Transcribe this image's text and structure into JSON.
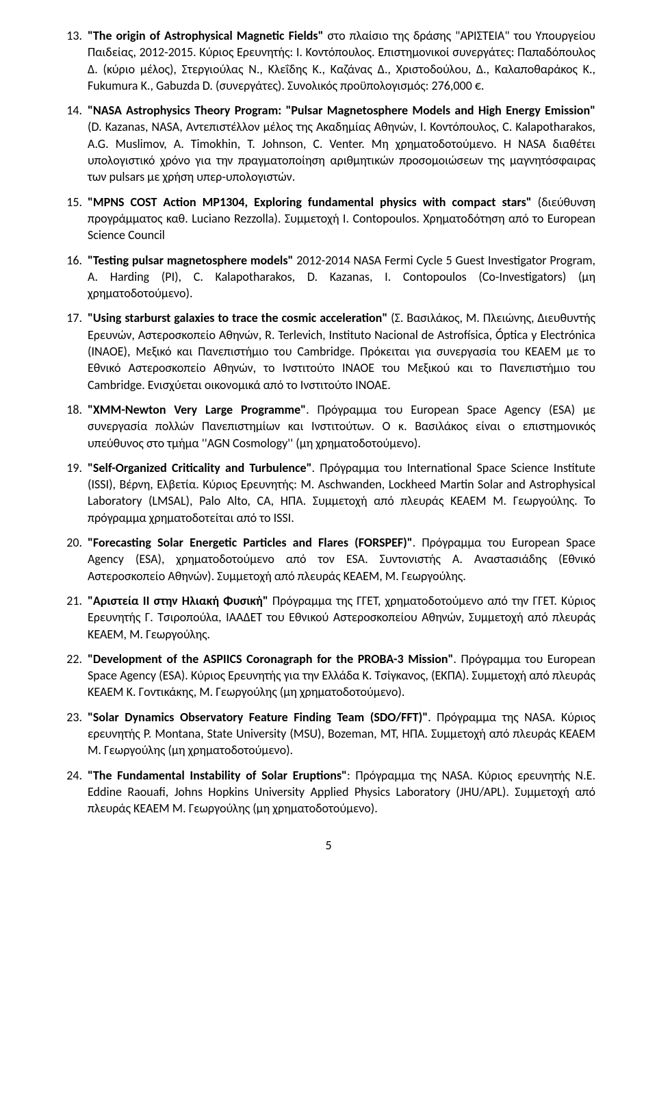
{
  "items": [
    {
      "num": "13.",
      "title": "\"The origin of Astrophysical Magnetic Fields\"",
      "body": " στο πλαίσιο της δράσης \"ΑΡΙΣΤΕΙΑ\" του Υπουργείου Παιδείας, 2012-2015. Κύριος Ερευνητής: Ι. Κοντόπουλος. Επιστημονικοί συνεργάτες: Παπαδόπουλος Δ. (κύριο μέλος), Στεργιούλας Ν., Κλεΐδης Κ., Καζάνας Δ., Χριστοδούλου, Δ., Καλαποθαράκος Κ., Fukumura K., Gabuzda D. (συνεργάτες). Συνολικός προϋπολογισμός: 276,000 €."
    },
    {
      "num": "14.",
      "title": "\"NASA Astrophysics Theory Program: \"Pulsar Magnetosphere Models and High Energy Emission\"",
      "body": " (D. Kazanas, NASA, Αντεπιστέλλον μέλος της Ακαδημίας Αθηνών, Ι. Κοντόπουλος, C. Kalapotharakos, A.G. Muslimov, A. Timokhin, T. Johnson, C. Venter. Μη χρηματοδοτούμενο. Η NASA διαθέτει υπολογιστικό χρόνο για την πραγματοποίηση αριθμητικών προσομοιώσεων της μαγνητόσφαιρας των pulsars με χρήση υπερ-υπολογιστών."
    },
    {
      "num": "15.",
      "title": "\"MPNS COST Action MP1304, Exploring fundamental physics with compact stars\"",
      "body": " (διεύθυνση προγράμματος καθ. Luciano Rezzolla). Συμμετοχή Ι. Contopoulos. Χρηματοδότηση από το European Science Council"
    },
    {
      "num": "16.",
      "title": "\"Testing pulsar magnetosphere models\"",
      "body": " 2012-2014 NASA Fermi Cycle 5 Guest Investigator Program, A. Harding (PI), C. Kalapotharakos, D. Kazanas, I. Contopoulos (Co-Investigators) (μη χρηματοδοτούμενο)."
    },
    {
      "num": "17.",
      "title": "\"Using starburst galaxies to trace the cosmic acceleration\"",
      "body": " (Σ. Βασιλάκος, Μ. Πλειώνης, Διευθυντής Ερευνών, Αστεροσκοπείο Αθηνών, R. Terlevich, Instituto Nacional de Astrofísica, Óptica y Electrónica (INAOE), Μεξικό και Πανεπιστήμιο του Cambridge. Πρόκειται για συνεργασία του ΚΕΑΕΜ με το Εθνικό Αστεροσκοπείο Αθηνών, το Ινστιτούτο INAOE του Μεξικού και το Πανεπιστήμιο του Cambridge. Ενισχύεται οικονομικά από το Ινστιτούτο INOAE."
    },
    {
      "num": "18.",
      "title": "\"XMM-Newton Very Large Programme\"",
      "body": ". Πρόγραμμα του European Space Agency (ESA) με συνεργασία πολλών Πανεπιστημίων και Ινστιτούτων. Ο κ. Βασιλάκος είναι ο επιστημονικός υπεύθυνος στο τμήμα ''AGN Cosmology'' (μη χρηματοδοτούμενο)."
    },
    {
      "num": "19.",
      "title": "\"Self-Organized Criticality and Turbulence\"",
      "body": ". Πρόγραμμα του International Space Science Institute (ISSI), Βέρνη, Ελβετία. Κύριος Ερευνητής: M. Aschwanden, Lockheed Martin Solar and Astrophysical Laboratory (LMSAL), Palo Alto, CA, ΗΠΑ. Συμμετοχή από πλευράς ΚΕΑΕΜ Μ. Γεωργούλης. Το πρόγραμμα χρηματοδοτείται από το ISSI."
    },
    {
      "num": "20.",
      "title": "\"Forecasting Solar Energetic Particles and Flares (FORSPEF)\"",
      "body": ". Πρόγραμμα του European Space Agency (ESA), χρηματοδοτούμενο από τον ESA. Συντονιστής Α. Αναστασιάδης (Εθνικό Αστεροσκοπείο Αθηνών). Συμμετοχή από πλευράς ΚΕΑΕΜ, Μ. Γεωργούλης."
    },
    {
      "num": "21.",
      "title": "\"Αριστεία ΙΙ στην Ηλιακή Φυσική\"",
      "body": " Πρόγραμμα της ΓΓΕΤ, χρηματοδοτούμενο από την ΓΓΕΤ. Κύριος Ερευνητής Γ. Τσιροπούλα, ΙΑΑΔΕΤ του Εθνικού Αστεροσκοπείου Αθηνών, Συμμετοχή από πλευράς ΚΕΑΕΜ, Μ. Γεωργούλης."
    },
    {
      "num": "22.",
      "title": "\"Development of the ASPIICS Coronagraph for the PROBA-3 Mission\"",
      "body": ". Πρόγραμμα του European Space Agency (ESA). Κύριος Ερευνητής για την Ελλάδα Κ. Τσίγκανος, (ΕΚΠΑ). Συμμετοχή από πλευράς ΚΕΑΕΜ Κ. Γοντικάκης, Μ. Γεωργούλης (μη χρηματοδοτούμενο)."
    },
    {
      "num": "23.",
      "title": "\"Solar Dynamics Observatory Feature Finding Team (SDO/FFT)\"",
      "body": ". Πρόγραμμα της NASA. Κύριος ερευνητής P. Montana, State University (MSU), Bozeman, MT, ΗΠΑ. Συμμετοχή από πλευράς ΚΕΑΕΜ Μ. Γεωργούλης (μη χρηματοδοτούμενο)."
    },
    {
      "num": "24.",
      "title": "\"The Fundamental Instability of Solar Eruptions\"",
      "body": ": Πρόγραμμα της NASA. Κύριος ερευνητής N.E. Eddine Raouafi, Johns Hopkins University Applied Physics Laboratory (JHU/APL). Συμμετοχή από πλευράς ΚΕΑΕΜ Μ. Γεωργούλης (μη χρηματοδοτούμενο)."
    }
  ],
  "page_number": "5"
}
